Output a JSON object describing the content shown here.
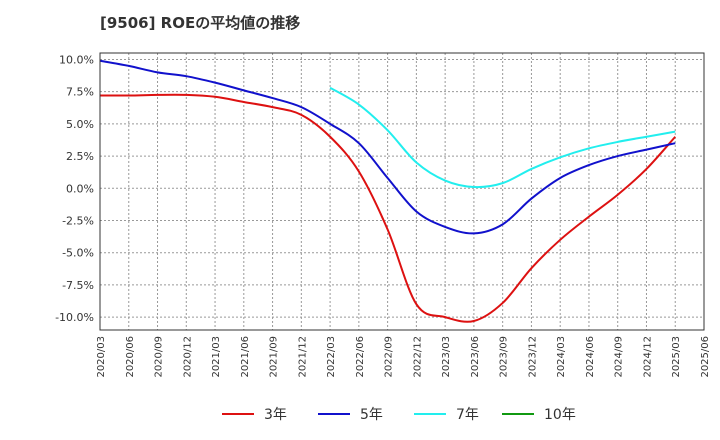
{
  "chart_data": {
    "type": "line",
    "title": "[9506]  ROEの平均値の推移",
    "xlabel": "",
    "ylabel": "",
    "ylim": [
      -11,
      10.5
    ],
    "grid": true,
    "legend_position": "bottom",
    "y_ticks": [
      {
        "value": 10,
        "label": "10.0%"
      },
      {
        "value": 7.5,
        "label": "7.5%"
      },
      {
        "value": 5,
        "label": "5.0%"
      },
      {
        "value": 2.5,
        "label": "2.5%"
      },
      {
        "value": 0,
        "label": "0.0%"
      },
      {
        "value": -2.5,
        "label": "-2.5%"
      },
      {
        "value": -5,
        "label": "-5.0%"
      },
      {
        "value": -7.5,
        "label": "-7.5%"
      },
      {
        "value": -10,
        "label": "-10.0%"
      }
    ],
    "categories": [
      "2020/03",
      "2020/06",
      "2020/09",
      "2020/12",
      "2021/03",
      "2021/06",
      "2021/09",
      "2021/12",
      "2022/03",
      "2022/06",
      "2022/09",
      "2022/12",
      "2023/03",
      "2023/06",
      "2023/09",
      "2023/12",
      "2024/03",
      "2024/06",
      "2024/09",
      "2024/12",
      "2025/03",
      "2025/06"
    ],
    "series": [
      {
        "name": "3年",
        "color": "#dd1111",
        "values": [
          7.2,
          7.2,
          7.25,
          7.25,
          7.1,
          6.7,
          6.3,
          5.7,
          4.0,
          1.3,
          -3.2,
          -9.0,
          -10.0,
          -10.3,
          -8.9,
          -6.2,
          -4.0,
          -2.2,
          -0.5,
          1.5,
          4.0,
          null
        ]
      },
      {
        "name": "5年",
        "color": "#1111cc",
        "values": [
          9.9,
          9.5,
          9.0,
          8.7,
          8.2,
          7.6,
          7.0,
          6.3,
          5.0,
          3.5,
          0.8,
          -1.8,
          -3.0,
          -3.5,
          -2.8,
          -0.8,
          0.8,
          1.8,
          2.5,
          3.0,
          3.5,
          null
        ]
      },
      {
        "name": "7年",
        "color": "#22eeee",
        "values": [
          null,
          null,
          null,
          null,
          null,
          null,
          null,
          null,
          7.8,
          6.5,
          4.5,
          2.0,
          0.6,
          0.1,
          0.4,
          1.5,
          2.4,
          3.1,
          3.6,
          4.0,
          4.4,
          null
        ]
      },
      {
        "name": "10年",
        "color": "#119911",
        "values": [
          null,
          null,
          null,
          null,
          null,
          null,
          null,
          null,
          null,
          null,
          null,
          null,
          null,
          null,
          null,
          null,
          null,
          null,
          null,
          null,
          null,
          null
        ]
      }
    ]
  }
}
